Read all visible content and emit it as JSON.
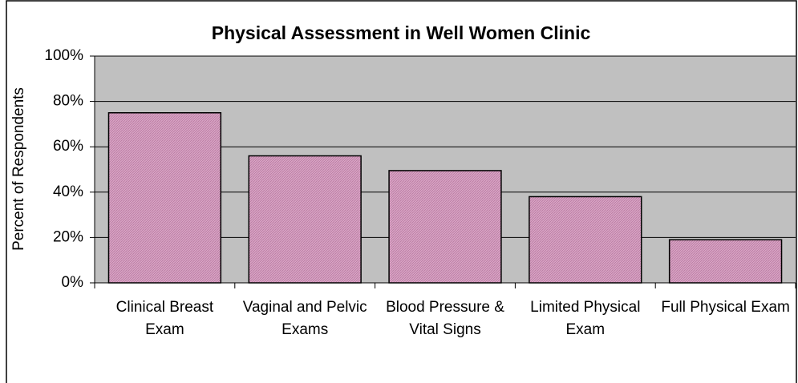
{
  "chart_data": {
    "type": "bar",
    "title": "Physical Assessment in Well Women Clinic",
    "y_label": "Percent of Respondents",
    "categories": [
      "Clinical Breast Exam",
      "Vaginal and Pelvic Exams",
      "Blood Pressure & Vital Signs",
      "Limited Physical Exam",
      "Full Physical Exam"
    ],
    "values": [
      75,
      56,
      49.5,
      38,
      19
    ],
    "color": "#d8a3c4",
    "ylim": [
      0,
      100
    ],
    "yticks": [
      {
        "value": 0,
        "label": "0%"
      },
      {
        "value": 20,
        "label": "20%"
      },
      {
        "value": 40,
        "label": "40%"
      },
      {
        "value": 60,
        "label": "60%"
      },
      {
        "value": 80,
        "label": "80%"
      },
      {
        "value": 100,
        "label": "100%"
      }
    ],
    "grid": true
  }
}
